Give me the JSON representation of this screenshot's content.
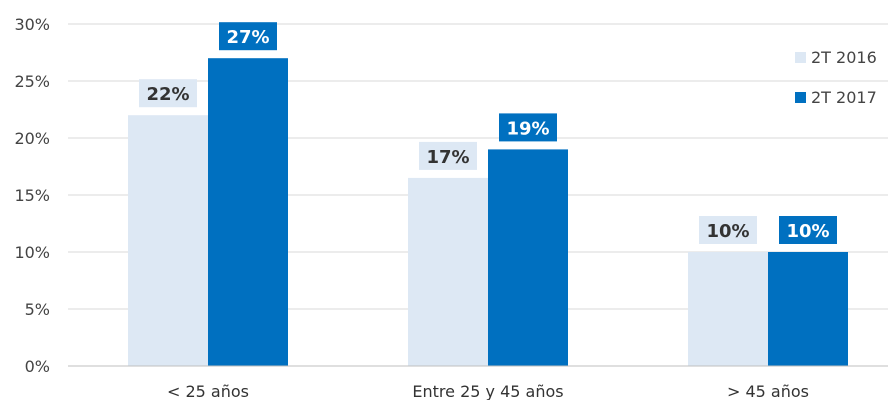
{
  "chart_data": {
    "type": "bar",
    "categories": [
      "< 25 años",
      "Entre 25 y 45 años",
      "> 45 años"
    ],
    "series": [
      {
        "name": "2T 2016",
        "values": [
          22,
          16.5,
          10
        ],
        "data_labels": [
          "22%",
          "17%",
          "10%"
        ],
        "color": "#dde8f4",
        "label_bg": "#dde8f4",
        "label_color": "#333333"
      },
      {
        "name": "2T 2017",
        "values": [
          27,
          19,
          10
        ],
        "data_labels": [
          "27%",
          "19%",
          "10%"
        ],
        "color": "#0070c0",
        "label_bg": "#0070c0",
        "label_color": "#ffffff"
      }
    ],
    "y_ticks": [
      0,
      5,
      10,
      15,
      20,
      25,
      30
    ],
    "y_tick_labels": [
      "0%",
      "5%",
      "10%",
      "15%",
      "20%",
      "25%",
      "30%"
    ],
    "ylim": [
      0,
      30
    ],
    "grid": true,
    "grid_color": "#d9d9d9",
    "legend_position": "right"
  }
}
